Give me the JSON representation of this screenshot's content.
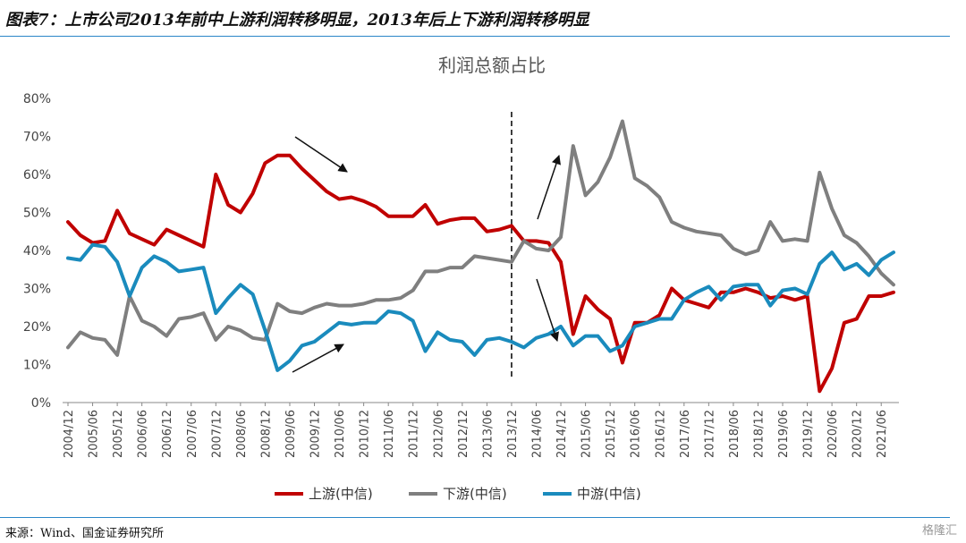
{
  "header": {
    "title": "图表7：上市公司2013年前中上游利润转移明显，2013年后上下游利润转移明显"
  },
  "footer": {
    "source": "来源：Wind、国金证券研究所",
    "watermark": "格隆汇"
  },
  "colors": {
    "upstream": "#c00000",
    "downstream": "#7f7f7f",
    "midstream": "#1a8bbd",
    "rule": "#2a86c8",
    "axis": "#888888"
  },
  "chart_data": {
    "type": "line",
    "title": "利润总额占比",
    "xlabel": "",
    "ylabel": "",
    "ylim": [
      0,
      80
    ],
    "yticks": [
      "0%",
      "10%",
      "20%",
      "30%",
      "40%",
      "50%",
      "60%",
      "70%",
      "80%"
    ],
    "xtick_labels": [
      "2004/12",
      "2005/06",
      "2005/12",
      "2006/06",
      "2006/12",
      "2007/06",
      "2007/12",
      "2008/06",
      "2008/12",
      "2009/06",
      "2009/12",
      "2010/06",
      "2010/12",
      "2011/06",
      "2011/12",
      "2012/06",
      "2012/12",
      "2013/06",
      "2013/12",
      "2014/06",
      "2014/12",
      "2015/06",
      "2015/12",
      "2016/06",
      "2016/12",
      "2017/06",
      "2017/12",
      "2018/06",
      "2018/12",
      "2019/06",
      "2019/12",
      "2020/06",
      "2020/12",
      "2021/06"
    ],
    "x_start": "2004/12",
    "x_step": "quarter",
    "divider_at": "2013/12",
    "legend_position": "bottom",
    "annotations": [
      "down-arrow 2009-2011",
      "up-arrow 2009-2011",
      "up-arrow 2014",
      "down-arrow 2014"
    ],
    "series": [
      {
        "name": "上游(中信)",
        "color_key": "upstream",
        "values": [
          47.5,
          44,
          42,
          42.5,
          50.5,
          44.5,
          43,
          41.5,
          45.5,
          44,
          42.5,
          41,
          60,
          52,
          50,
          55,
          63,
          65,
          65,
          61.5,
          58.5,
          55.5,
          53.5,
          54,
          53,
          51.5,
          49,
          49,
          49,
          52,
          47,
          48,
          48.5,
          48.5,
          45,
          45.5,
          46.5,
          42.5,
          42.5,
          42,
          37,
          18,
          28,
          24.5,
          22,
          10.5,
          21,
          21,
          23,
          30,
          27,
          26,
          25,
          29,
          29,
          30,
          29,
          27.5,
          28,
          27,
          28,
          3,
          9,
          21,
          22,
          28,
          28,
          29
        ]
      },
      {
        "name": "下游(中信)",
        "color_key": "downstream",
        "values": [
          14.5,
          18.5,
          17,
          16.5,
          12.5,
          28,
          21.5,
          20,
          17.5,
          22,
          22.5,
          23.5,
          16.5,
          20,
          19,
          17,
          16.5,
          26,
          24,
          23.5,
          25,
          26,
          25.5,
          25.5,
          26,
          27,
          27,
          27.5,
          29.5,
          34.5,
          34.5,
          35.5,
          35.5,
          38.5,
          38,
          37.5,
          37,
          42.5,
          40.5,
          40,
          43.5,
          67.5,
          54.5,
          58,
          64.5,
          74,
          59,
          57,
          54,
          47.5,
          46,
          45,
          44.5,
          44,
          40.5,
          39,
          40,
          47.5,
          42.5,
          43,
          42.5,
          60.5,
          51,
          44,
          42,
          38.5,
          34,
          31
        ]
      },
      {
        "name": "中游(中信)",
        "color_key": "midstream",
        "values": [
          38,
          37.5,
          41.5,
          41,
          37,
          28,
          35.5,
          38.5,
          37,
          34.5,
          35,
          35.5,
          23.5,
          27.5,
          31,
          28.5,
          19,
          8.5,
          11,
          15,
          16,
          18.5,
          21,
          20.5,
          21,
          21,
          24,
          23.5,
          21.5,
          13.5,
          18.5,
          16.5,
          16,
          12.5,
          16.5,
          17,
          16,
          14.5,
          17,
          18,
          20,
          15,
          17.5,
          17.5,
          13.5,
          15,
          20,
          21,
          22,
          22,
          27,
          29,
          30.5,
          27,
          30.5,
          31,
          31,
          25.5,
          29.5,
          30,
          28.5,
          36.5,
          39.5,
          35,
          36.5,
          33.5,
          37.5,
          39.5
        ]
      }
    ]
  }
}
